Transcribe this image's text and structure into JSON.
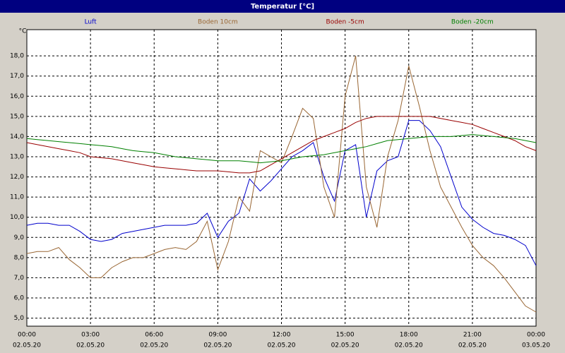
{
  "chart_data": {
    "type": "line",
    "title": "Temperatur [°C]",
    "y_unit": "°C",
    "x": [
      0,
      0.5,
      1,
      1.5,
      2,
      2.5,
      3,
      3.5,
      4,
      4.5,
      5,
      5.5,
      6,
      6.5,
      7,
      7.5,
      8,
      8.5,
      9,
      9.5,
      10,
      10.5,
      11,
      11.5,
      12,
      12.5,
      13,
      13.5,
      14,
      14.5,
      15,
      15.5,
      16,
      16.5,
      17,
      17.5,
      18,
      18.5,
      19,
      19.5,
      20,
      20.5,
      21,
      21.5,
      22,
      22.5,
      23,
      23.5,
      24
    ],
    "xlim": [
      0,
      24
    ],
    "xticks": [
      {
        "value": 0,
        "label": "00:00",
        "date": "02.05.20"
      },
      {
        "value": 3,
        "label": "03:00",
        "date": "02.05.20"
      },
      {
        "value": 6,
        "label": "06:00",
        "date": "02.05.20"
      },
      {
        "value": 9,
        "label": "09:00",
        "date": "02.05.20"
      },
      {
        "value": 12,
        "label": "12:00",
        "date": "02.05.20"
      },
      {
        "value": 15,
        "label": "15:00",
        "date": "02.05.20"
      },
      {
        "value": 18,
        "label": "18:00",
        "date": "02.05.20"
      },
      {
        "value": 21,
        "label": "21:00",
        "date": "02.05.20"
      },
      {
        "value": 24,
        "label": "00:00",
        "date": "03.05.20"
      }
    ],
    "ylim": [
      4.6,
      19.3
    ],
    "yticks": [
      {
        "value": 5,
        "label": "5,0"
      },
      {
        "value": 6,
        "label": "6,0"
      },
      {
        "value": 7,
        "label": "7,0"
      },
      {
        "value": 8,
        "label": "8,0"
      },
      {
        "value": 9,
        "label": "9,0"
      },
      {
        "value": 10,
        "label": "10,0"
      },
      {
        "value": 11,
        "label": "11,0"
      },
      {
        "value": 12,
        "label": "12,0"
      },
      {
        "value": 13,
        "label": "13,0"
      },
      {
        "value": 14,
        "label": "14,0"
      },
      {
        "value": 15,
        "label": "15,0"
      },
      {
        "value": 16,
        "label": "16,0"
      },
      {
        "value": 17,
        "label": "17,0"
      },
      {
        "value": 18,
        "label": "18,0"
      }
    ],
    "grid": true,
    "series": [
      {
        "name": "Luft",
        "color": "#0000cc",
        "values": [
          9.6,
          9.7,
          9.7,
          9.6,
          9.6,
          9.3,
          8.9,
          8.8,
          8.9,
          9.2,
          9.3,
          9.4,
          9.5,
          9.6,
          9.6,
          9.6,
          9.7,
          10.2,
          9.0,
          9.8,
          10.2,
          11.9,
          11.3,
          11.8,
          12.4,
          13.0,
          13.3,
          13.7,
          12.0,
          10.8,
          13.3,
          13.6,
          10.0,
          12.3,
          12.8,
          13.0,
          14.8,
          14.8,
          14.3,
          13.5,
          12.0,
          10.5,
          9.9,
          9.5,
          9.2,
          9.1,
          8.9,
          8.6,
          7.6
        ]
      },
      {
        "name": "Boden 10cm",
        "color": "#996633",
        "values": [
          8.2,
          8.3,
          8.3,
          8.5,
          7.9,
          7.5,
          7.0,
          7.0,
          7.5,
          7.8,
          8.0,
          8.0,
          8.2,
          8.4,
          8.5,
          8.4,
          8.8,
          9.8,
          7.4,
          8.8,
          11.0,
          10.3,
          13.3,
          13.0,
          12.7,
          14.0,
          15.4,
          14.9,
          11.5,
          10.0,
          16.0,
          18.0,
          11.5,
          9.5,
          13.0,
          14.8,
          17.5,
          15.5,
          13.3,
          11.5,
          10.5,
          9.5,
          8.6,
          8.0,
          7.6,
          7.0,
          6.3,
          5.6,
          5.3
        ]
      },
      {
        "name": "Boden -5cm",
        "color": "#990000",
        "values": [
          13.7,
          13.6,
          13.5,
          13.4,
          13.3,
          13.2,
          13.0,
          12.95,
          12.9,
          12.8,
          12.7,
          12.6,
          12.5,
          12.45,
          12.4,
          12.35,
          12.3,
          12.3,
          12.3,
          12.25,
          12.2,
          12.2,
          12.3,
          12.6,
          12.9,
          13.2,
          13.5,
          13.8,
          14.0,
          14.2,
          14.4,
          14.7,
          14.9,
          15.0,
          15.0,
          15.0,
          15.0,
          15.0,
          15.0,
          14.9,
          14.8,
          14.7,
          14.6,
          14.4,
          14.2,
          14.0,
          13.8,
          13.5,
          13.3
        ]
      },
      {
        "name": "Boden -20cm",
        "color": "#008000",
        "values": [
          13.9,
          13.85,
          13.8,
          13.75,
          13.7,
          13.65,
          13.6,
          13.55,
          13.5,
          13.4,
          13.3,
          13.25,
          13.2,
          13.1,
          13.0,
          12.95,
          12.9,
          12.85,
          12.8,
          12.8,
          12.8,
          12.75,
          12.7,
          12.75,
          12.8,
          12.9,
          13.0,
          13.05,
          13.1,
          13.2,
          13.3,
          13.4,
          13.5,
          13.65,
          13.8,
          13.85,
          13.9,
          13.95,
          14.0,
          14.0,
          14.0,
          14.05,
          14.1,
          14.05,
          14.0,
          13.95,
          13.9,
          13.8,
          13.7
        ]
      }
    ]
  }
}
